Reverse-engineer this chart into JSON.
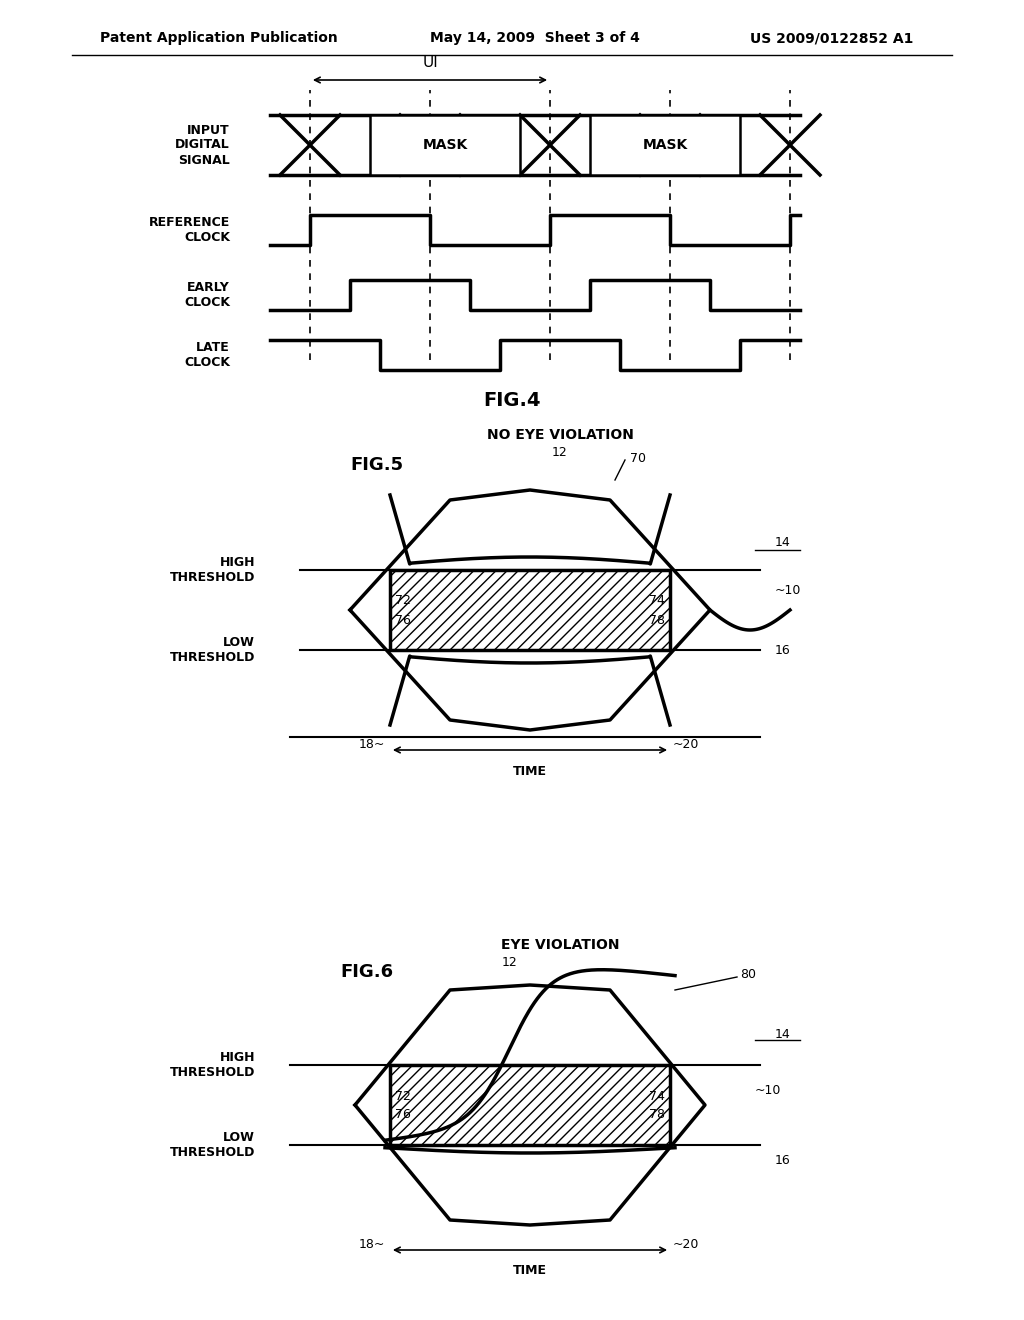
{
  "header_left": "Patent Application Publication",
  "header_mid": "May 14, 2009  Sheet 3 of 4",
  "header_right": "US 2009/0122852 A1",
  "fig4_label": "FIG.4",
  "fig5_label": "FIG.5",
  "fig6_label": "FIG.6",
  "fig5_title": "NO EYE VIOLATION",
  "fig6_title": "EYE VIOLATION",
  "bg_color": "#ffffff",
  "line_color": "#000000"
}
